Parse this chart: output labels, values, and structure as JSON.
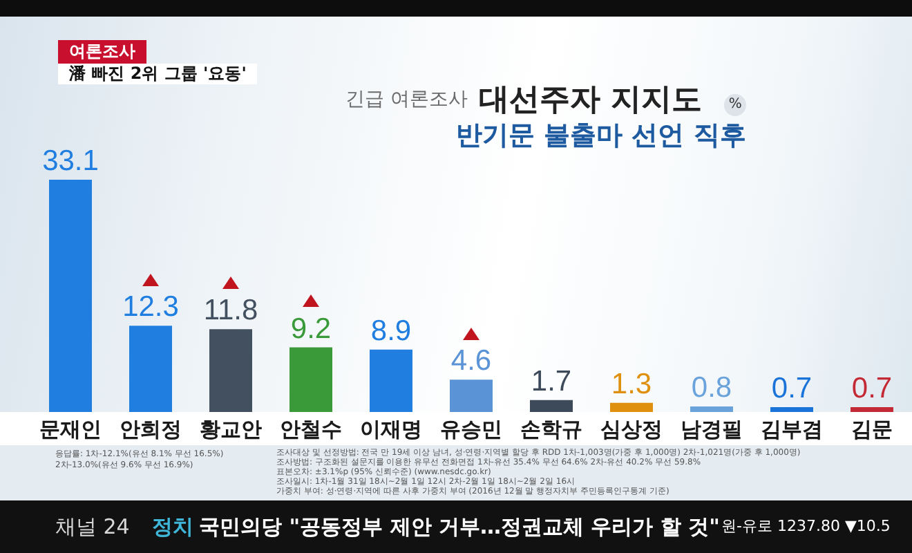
{
  "chart_data": {
    "type": "bar",
    "title": "대선주자 지지도",
    "subtitle": "반기문 불출마 선언 직후",
    "ylabel": "%",
    "categories": [
      "문재인",
      "안희정",
      "황교안",
      "안철수",
      "이재명",
      "유승민",
      "손학규",
      "심상정",
      "남경필",
      "김부겸",
      "김문"
    ],
    "values": [
      33.1,
      12.3,
      11.8,
      9.2,
      8.9,
      4.6,
      1.7,
      1.3,
      0.8,
      0.7,
      0.7
    ],
    "colors": [
      "#1f7ee0",
      "#1f7ee0",
      "#43505f",
      "#3a9a3a",
      "#1f7ee0",
      "#5a93d6",
      "#3d4a5a",
      "#e0900f",
      "#6aa2dc",
      "#1a73d9",
      "#c42a35"
    ],
    "data_labels": true,
    "annotations": [
      "여론조사",
      "潘 빠진 2위 그룹 '요동'",
      "긴급 여론조사",
      "응답률: 1차-12.1%(유선 8.1% 무선 16.5%)",
      "2차-13.0%(유선 9.6% 무선 16.9%)",
      "조사대상 및 선정방법: 전국 만 19세 이상 남녀, 성·연령·지역별 할당 후 RDD 1차-1,003명(가중 후 1,000명) 2차-1,021명(가중 후 1,000명)",
      "조사방법: 구조화된 설문지를 이용한 유무선 전화면접 1차-유선 35.4% 무선 64.6% 2차-유선 40.2% 무선 59.8%",
      "표본오차: ±3.1%p (95% 신뢰수준) (www.nesdc.go.kr)",
      "조사일시: 1차-1월 31일 18시~2월 1일 12시 2차-2월 1일 18시~2월 2일 16시",
      "가중치 부여: 성·연령·지역에 따른 사후 가중치 부여 (2016년 12월 말 행정자치부 주민등록인구통계 기준)",
      "채널 24",
      "정치",
      "국민의당 \"공동정부 제안 거부…정권교체 우리가 할 것\"",
      "원-유로 1237.80 ▼10.5"
    ]
  }
}
